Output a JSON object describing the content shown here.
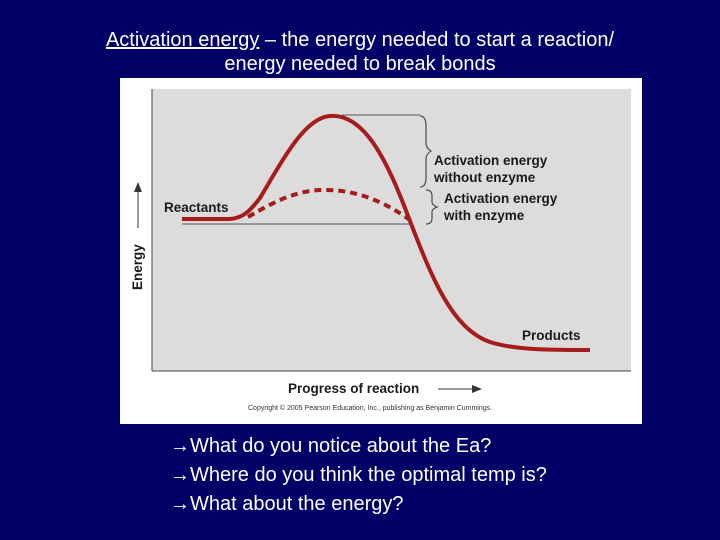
{
  "slide": {
    "title_term": "Activation energy",
    "title_rest": " – the energy needed to start a reaction/",
    "title_line2": "energy needed to break bonds"
  },
  "diagram": {
    "y_axis_label": "Energy",
    "x_axis_label": "Progress of reaction",
    "reactants_label": "Reactants",
    "products_label": "Products",
    "without_enzyme_label": [
      "Activation energy",
      "without enzyme"
    ],
    "with_enzyme_label": [
      "Activation energy",
      "with enzyme"
    ],
    "copyright": "Copyright © 2005 Pearson Education, Inc., publishing as Benjamin Cummings.",
    "colors": {
      "curve": "#a61c1c",
      "plot_background": "#dcdcdc",
      "bracket": "#555555"
    }
  },
  "questions": [
    "What do you notice about the Ea?",
    "Where do you think the optimal temp is?",
    "What about the energy?"
  ],
  "colors": {
    "slide_background": "#000066",
    "text": "#ffffff"
  }
}
